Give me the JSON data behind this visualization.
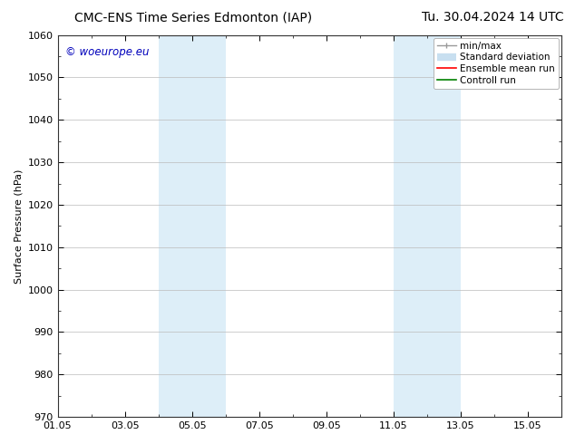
{
  "title": "CMC-ENS Time Series Edmonton (IAP)      Tu. 30.04.2024 14 UTC",
  "title_left": "CMC-ENS Time Series Edmonton (IAP)",
  "title_right": "Tu. 30.04.2024 14 UTC",
  "ylabel": "Surface Pressure (hPa)",
  "ylim": [
    970,
    1060
  ],
  "yticks": [
    970,
    980,
    990,
    1000,
    1010,
    1020,
    1030,
    1040,
    1050,
    1060
  ],
  "xlim": [
    0,
    15
  ],
  "xtick_labels": [
    "01.05",
    "03.05",
    "05.05",
    "07.05",
    "09.05",
    "11.05",
    "13.05",
    "15.05"
  ],
  "xtick_positions": [
    0,
    2,
    4,
    6,
    8,
    10,
    12,
    14
  ],
  "shaded_bands": [
    {
      "x_start": 3,
      "x_end": 5,
      "color": "#ddeef8"
    },
    {
      "x_start": 10,
      "x_end": 12,
      "color": "#ddeef8"
    }
  ],
  "watermark_text": "© woeurope.eu",
  "watermark_color": "#0000bb",
  "legend_labels": [
    "min/max",
    "Standard deviation",
    "Ensemble mean run",
    "Controll run"
  ],
  "legend_colors": [
    "#aaaaaa",
    "#ccddee",
    "red",
    "green"
  ],
  "bg_color": "#ffffff",
  "plot_bg_color": "#ffffff",
  "grid_color": "#bbbbbb",
  "title_fontsize": 10,
  "label_fontsize": 8,
  "tick_fontsize": 8,
  "legend_fontsize": 7.5
}
